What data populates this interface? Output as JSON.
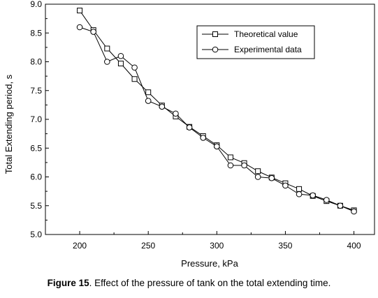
{
  "chart_data": {
    "type": "line",
    "title": "",
    "xlabel": "Pressure, kPa",
    "ylabel": "Total Extending period, s",
    "xlim": [
      175,
      415
    ],
    "ylim": [
      5.0,
      9.0
    ],
    "x_ticks": [
      200,
      250,
      300,
      350,
      400
    ],
    "y_ticks": [
      5.0,
      5.5,
      6.0,
      6.5,
      7.0,
      7.5,
      8.0,
      8.5,
      9.0
    ],
    "grid": false,
    "legend_position": "top-right",
    "series": [
      {
        "name": "Theoretical value",
        "marker": "square",
        "x": [
          200,
          210,
          220,
          230,
          240,
          250,
          260,
          270,
          280,
          290,
          300,
          310,
          320,
          330,
          340,
          350,
          360,
          370,
          380,
          390,
          400
        ],
        "values": [
          8.89,
          8.55,
          8.23,
          7.97,
          7.7,
          7.47,
          7.24,
          7.05,
          6.87,
          6.71,
          6.55,
          6.34,
          6.24,
          6.1,
          5.99,
          5.89,
          5.79,
          5.67,
          5.58,
          5.5,
          5.42
        ]
      },
      {
        "name": "Experimental data",
        "marker": "circle",
        "x": [
          200,
          210,
          220,
          230,
          240,
          250,
          260,
          270,
          280,
          290,
          300,
          310,
          320,
          330,
          340,
          350,
          360,
          370,
          380,
          390,
          400
        ],
        "values": [
          8.6,
          8.52,
          8.0,
          8.1,
          7.9,
          7.32,
          7.22,
          7.1,
          6.86,
          6.68,
          6.53,
          6.2,
          6.2,
          6.0,
          5.98,
          5.85,
          5.7,
          5.68,
          5.6,
          5.5,
          5.4
        ]
      }
    ]
  },
  "caption": {
    "label": "Figure 15",
    "text": ". Effect of the pressure of tank on the total extending time."
  }
}
